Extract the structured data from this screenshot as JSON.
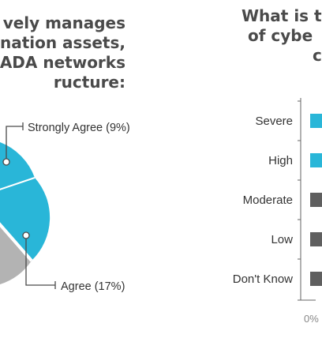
{
  "left_panel": {
    "title_lines": [
      "vely manages",
      "nation assets,",
      "ADA networks",
      "ructure:"
    ]
  },
  "right_panel": {
    "title_lines": [
      "What is t",
      "of cybe",
      "c"
    ]
  },
  "chart_data": [
    {
      "type": "pie",
      "title": "",
      "slices": [
        {
          "label": "Strongly Agree (9%)",
          "value": 9,
          "color": "#29b6d8"
        },
        {
          "label": "Agree (17%)",
          "value": 17,
          "color": "#29b6d8"
        },
        {
          "label": "",
          "value": null,
          "color": "#b3b3b3"
        }
      ]
    },
    {
      "type": "bar",
      "orientation": "horizontal",
      "categories": [
        "Severe",
        "High",
        "Moderate",
        "Low",
        "Don't Know"
      ],
      "colors": [
        "#29b6d8",
        "#29b6d8",
        "#5f5f5f",
        "#5f5f5f",
        "#5f5f5f"
      ],
      "xticks": [
        "0%"
      ],
      "grid": false
    }
  ]
}
